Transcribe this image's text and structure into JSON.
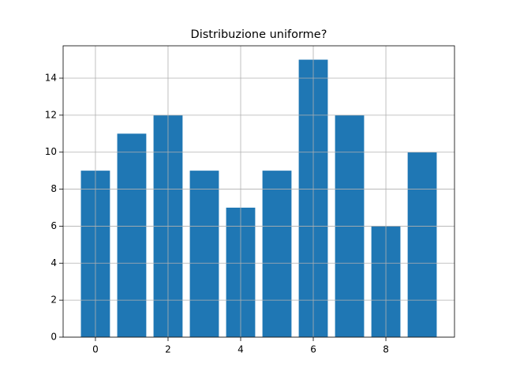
{
  "chart_data": {
    "type": "bar",
    "title": "Distribuzione uniforme?",
    "x": [
      0,
      1,
      2,
      3,
      4,
      5,
      6,
      7,
      8,
      9
    ],
    "values": [
      9,
      11,
      12,
      9,
      7,
      9,
      15,
      12,
      6,
      10
    ],
    "color": "#1f77b4",
    "xlim": [
      -0.89,
      9.89
    ],
    "xticks": [
      0,
      2,
      4,
      6,
      8
    ],
    "ylim": [
      0,
      15.75
    ],
    "yticks": [
      0,
      2,
      4,
      6,
      8,
      10,
      12,
      14
    ],
    "grid": true
  }
}
